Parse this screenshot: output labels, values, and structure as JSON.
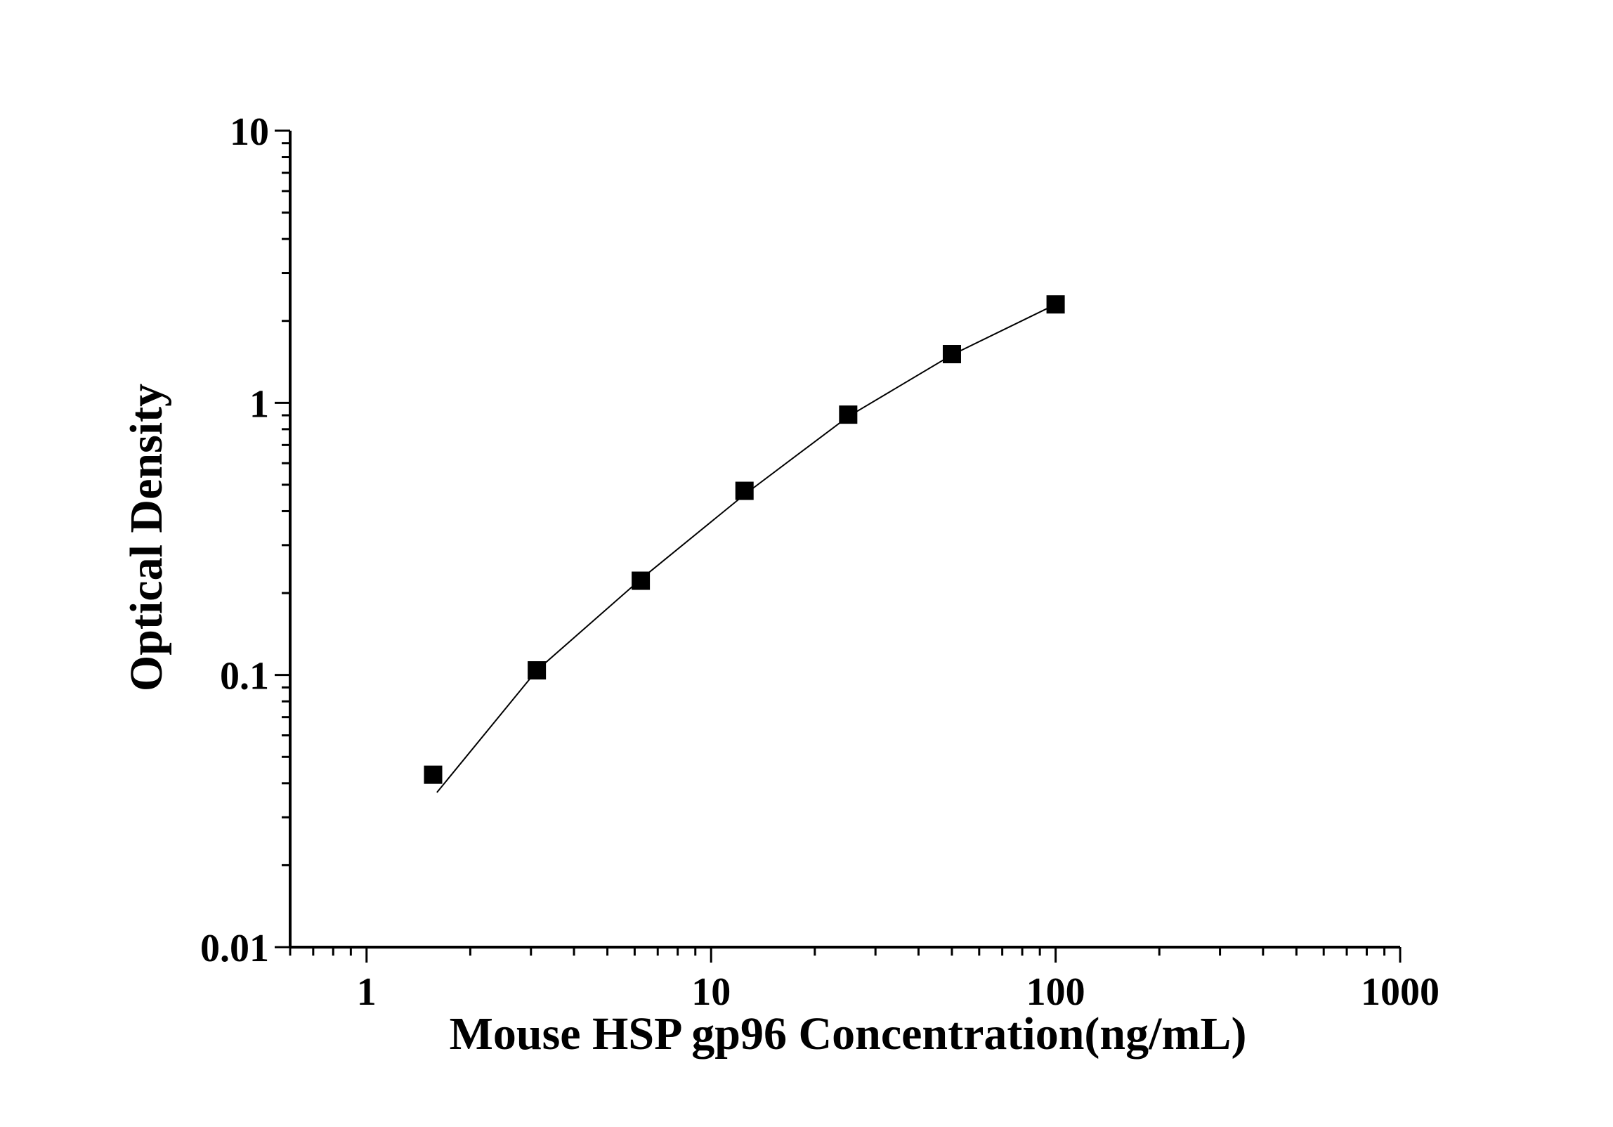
{
  "chart_data": {
    "type": "scatter",
    "title": "",
    "xlabel": "Mouse HSP gp96 Concentration(ng/mL)",
    "ylabel": "Optical Density",
    "xscale": "log",
    "yscale": "log",
    "xlim": [
      0.6,
      1000
    ],
    "ylim": [
      0.01,
      10
    ],
    "x_ticks": [
      1,
      10,
      100,
      1000
    ],
    "x_tick_labels": [
      "1",
      "10",
      "100",
      "1000"
    ],
    "y_ticks": [
      0.01,
      0.1,
      1,
      10
    ],
    "y_tick_labels": [
      "0.01",
      "0.1",
      "1",
      "10"
    ],
    "grid": false,
    "legend": "none",
    "series": [
      {
        "points": [
          {
            "x": 1.56,
            "y": 0.043
          },
          {
            "x": 3.12,
            "y": 0.104
          },
          {
            "x": 6.25,
            "y": 0.222
          },
          {
            "x": 12.5,
            "y": 0.475
          },
          {
            "x": 25,
            "y": 0.905
          },
          {
            "x": 50,
            "y": 1.51
          },
          {
            "x": 100,
            "y": 2.3
          }
        ]
      }
    ],
    "fit_curve": [
      {
        "x": 1.6,
        "y": 0.037
      },
      {
        "x": 3.12,
        "y": 0.104
      },
      {
        "x": 6.25,
        "y": 0.225
      },
      {
        "x": 12.5,
        "y": 0.46
      },
      {
        "x": 25,
        "y": 0.89
      },
      {
        "x": 50,
        "y": 1.5
      },
      {
        "x": 100,
        "y": 2.3
      }
    ],
    "color": "#000000"
  }
}
